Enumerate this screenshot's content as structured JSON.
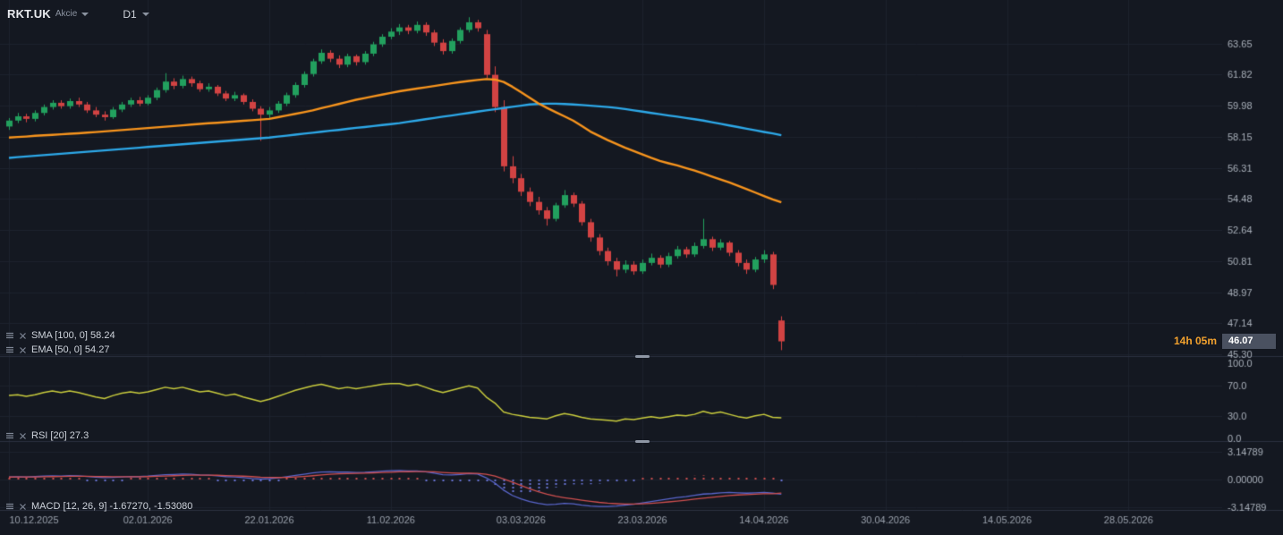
{
  "header": {
    "symbol": "RKT.UK",
    "instrument_type": "Akcie",
    "timeframe": "D1"
  },
  "indicators": [
    {
      "label": "SMA [100, 0] 58.24"
    },
    {
      "label": "EMA [50, 0] 54.27"
    },
    {
      "label": "RSI [20] 27.3"
    },
    {
      "label": "MACD [12, 26, 9] -1.67270, -1.53080"
    }
  ],
  "price_tag": {
    "value": "46.07",
    "countdown": "14h 05m"
  },
  "axes": {
    "price_labels": [
      "63.65",
      "61.82",
      "59.98",
      "58.15",
      "56.31",
      "54.48",
      "52.64",
      "50.81",
      "48.97",
      "47.14",
      "45.30"
    ],
    "rsi_labels": [
      "100.0",
      "70.0",
      "30.0",
      "0.0"
    ],
    "macd_labels": [
      "3.14789",
      "0.00000",
      "-3.14789"
    ],
    "date_ticks": [
      {
        "i": 0,
        "label": "10.12.2025"
      },
      {
        "i": 16,
        "label": "02.01.2026"
      },
      {
        "i": 30,
        "label": "22.01.2026"
      },
      {
        "i": 44,
        "label": "11.02.2026"
      },
      {
        "i": 59,
        "label": "03.03.2026"
      },
      {
        "i": 73,
        "label": "23.03.2026"
      },
      {
        "i": 87,
        "label": "14.04.2026"
      },
      {
        "i": 101,
        "label": "30.04.2026"
      },
      {
        "i": 115,
        "label": "14.05.2026"
      },
      {
        "i": 129,
        "label": "28.05.2026"
      }
    ]
  },
  "colors": {
    "bg": "#141821",
    "grid": "#1d222e",
    "divider": "#2b3140",
    "up": "#22a05e",
    "down": "#d24343",
    "sma": "#2da8e8",
    "ema": "#f7941d",
    "rsi": "#c8cb3d",
    "macd_line": "#5a66cc",
    "macd_signal": "#cf4f4f",
    "hist_pos": "#cf4f4f",
    "hist_neg": "#6b76d9",
    "axis_text": "#aab1bb",
    "date_text": "#9aa1ac"
  },
  "chart_data": {
    "type": "candlestick",
    "symbol": "RKT.UK",
    "timeframe": "D1",
    "last_price": 46.07,
    "scales": {
      "price_min": 45.2,
      "price_max": 65.9,
      "rsi_min": 0,
      "rsi_max": 100,
      "macd_min": -3.25,
      "macd_max": 3.25
    },
    "candles": [
      [
        58.75,
        59.25,
        58.55,
        59.1
      ],
      [
        59.1,
        59.55,
        58.95,
        59.35
      ],
      [
        59.35,
        59.5,
        59.0,
        59.2
      ],
      [
        59.2,
        59.7,
        59.05,
        59.55
      ],
      [
        59.55,
        60.05,
        59.4,
        59.9
      ],
      [
        59.9,
        60.3,
        59.75,
        60.15
      ],
      [
        60.15,
        60.3,
        59.8,
        59.95
      ],
      [
        59.95,
        60.4,
        59.8,
        60.25
      ],
      [
        60.25,
        60.45,
        59.9,
        60.05
      ],
      [
        60.05,
        60.2,
        59.55,
        59.7
      ],
      [
        59.7,
        59.9,
        59.3,
        59.45
      ],
      [
        59.45,
        59.65,
        59.1,
        59.3
      ],
      [
        59.3,
        59.9,
        59.2,
        59.75
      ],
      [
        59.75,
        60.2,
        59.6,
        60.05
      ],
      [
        60.05,
        60.45,
        59.9,
        60.3
      ],
      [
        60.3,
        60.5,
        59.95,
        60.1
      ],
      [
        60.1,
        60.6,
        60.0,
        60.45
      ],
      [
        60.45,
        61.05,
        60.3,
        60.9
      ],
      [
        60.9,
        61.9,
        60.75,
        61.4
      ],
      [
        61.4,
        61.6,
        60.95,
        61.15
      ],
      [
        61.15,
        61.75,
        61.0,
        61.55
      ],
      [
        61.55,
        61.7,
        61.1,
        61.3
      ],
      [
        61.3,
        61.45,
        60.8,
        60.95
      ],
      [
        60.95,
        61.3,
        60.8,
        61.1
      ],
      [
        61.1,
        61.2,
        60.55,
        60.7
      ],
      [
        60.7,
        60.85,
        60.25,
        60.4
      ],
      [
        60.4,
        60.8,
        60.25,
        60.6
      ],
      [
        60.6,
        60.7,
        60.05,
        60.2
      ],
      [
        60.2,
        60.35,
        59.65,
        59.8
      ],
      [
        59.8,
        59.95,
        57.9,
        59.45
      ],
      [
        59.45,
        59.9,
        59.25,
        59.7
      ],
      [
        59.7,
        60.25,
        59.55,
        60.1
      ],
      [
        60.1,
        60.75,
        59.95,
        60.6
      ],
      [
        60.6,
        61.35,
        60.45,
        61.2
      ],
      [
        61.2,
        62.0,
        61.05,
        61.85
      ],
      [
        61.85,
        62.75,
        61.7,
        62.6
      ],
      [
        62.6,
        63.3,
        62.45,
        63.1
      ],
      [
        63.1,
        63.25,
        62.55,
        62.75
      ],
      [
        62.75,
        62.95,
        62.2,
        62.4
      ],
      [
        62.4,
        63.05,
        62.25,
        62.9
      ],
      [
        62.9,
        63.0,
        62.35,
        62.55
      ],
      [
        62.55,
        63.2,
        62.4,
        63.05
      ],
      [
        63.05,
        63.75,
        62.9,
        63.6
      ],
      [
        63.6,
        64.2,
        63.45,
        64.05
      ],
      [
        64.05,
        64.55,
        63.9,
        64.35
      ],
      [
        64.35,
        64.8,
        64.15,
        64.6
      ],
      [
        64.6,
        64.75,
        64.2,
        64.4
      ],
      [
        64.4,
        64.95,
        64.25,
        64.75
      ],
      [
        64.75,
        64.9,
        64.1,
        64.3
      ],
      [
        64.3,
        64.45,
        63.5,
        63.7
      ],
      [
        63.7,
        63.9,
        63.0,
        63.2
      ],
      [
        63.2,
        63.95,
        63.05,
        63.8
      ],
      [
        63.8,
        64.6,
        63.65,
        64.45
      ],
      [
        64.45,
        65.2,
        64.3,
        64.9
      ],
      [
        64.9,
        65.05,
        64.35,
        64.55
      ],
      [
        64.2,
        64.45,
        61.6,
        61.8
      ],
      [
        61.8,
        62.3,
        59.6,
        59.9
      ],
      [
        59.9,
        60.3,
        56.1,
        56.4
      ],
      [
        56.4,
        57.0,
        55.4,
        55.7
      ],
      [
        55.7,
        55.95,
        54.65,
        54.9
      ],
      [
        54.9,
        55.15,
        54.05,
        54.3
      ],
      [
        54.3,
        54.6,
        53.55,
        53.8
      ],
      [
        53.8,
        54.0,
        52.9,
        53.3
      ],
      [
        53.3,
        54.25,
        53.15,
        54.1
      ],
      [
        54.1,
        55.0,
        53.95,
        54.7
      ],
      [
        54.7,
        54.85,
        54.0,
        54.2
      ],
      [
        54.2,
        54.35,
        52.9,
        53.1
      ],
      [
        53.1,
        53.3,
        51.95,
        52.2
      ],
      [
        52.2,
        52.4,
        51.15,
        51.4
      ],
      [
        51.4,
        51.6,
        50.55,
        50.8
      ],
      [
        50.8,
        51.0,
        49.9,
        50.3
      ],
      [
        50.3,
        50.85,
        50.1,
        50.6
      ],
      [
        50.6,
        50.8,
        50.0,
        50.2
      ],
      [
        50.2,
        50.9,
        50.05,
        50.7
      ],
      [
        50.7,
        51.25,
        50.55,
        51.0
      ],
      [
        51.0,
        51.15,
        50.4,
        50.6
      ],
      [
        50.6,
        51.3,
        50.45,
        51.1
      ],
      [
        51.1,
        51.7,
        50.95,
        51.5
      ],
      [
        51.5,
        51.65,
        51.0,
        51.2
      ],
      [
        51.2,
        51.9,
        51.05,
        51.7
      ],
      [
        51.7,
        53.3,
        51.55,
        52.1
      ],
      [
        52.1,
        52.25,
        51.4,
        51.6
      ],
      [
        51.6,
        52.1,
        51.45,
        51.9
      ],
      [
        51.9,
        52.0,
        51.1,
        51.3
      ],
      [
        51.3,
        51.45,
        50.5,
        50.7
      ],
      [
        50.7,
        50.9,
        50.05,
        50.3
      ],
      [
        50.3,
        51.05,
        50.15,
        50.9
      ],
      [
        50.9,
        51.45,
        50.7,
        51.2
      ],
      [
        51.2,
        51.35,
        49.15,
        49.4
      ],
      [
        47.3,
        47.55,
        45.55,
        46.07
      ]
    ],
    "sma100": [
      56.9,
      56.94,
      56.98,
      57.02,
      57.06,
      57.1,
      57.14,
      57.18,
      57.22,
      57.26,
      57.3,
      57.34,
      57.38,
      57.42,
      57.46,
      57.5,
      57.54,
      57.58,
      57.62,
      57.66,
      57.7,
      57.74,
      57.78,
      57.82,
      57.86,
      57.9,
      57.94,
      57.98,
      58.02,
      58.06,
      58.1,
      58.16,
      58.21,
      58.27,
      58.33,
      58.38,
      58.44,
      58.5,
      58.55,
      58.61,
      58.67,
      58.72,
      58.78,
      58.84,
      58.89,
      58.95,
      59.03,
      59.1,
      59.18,
      59.25,
      59.33,
      59.4,
      59.48,
      59.55,
      59.63,
      59.7,
      59.77,
      59.84,
      59.91,
      59.98,
      60.05,
      60.08,
      60.1,
      60.1,
      60.08,
      60.05,
      60.02,
      59.98,
      59.94,
      59.9,
      59.85,
      59.78,
      59.7,
      59.63,
      59.55,
      59.48,
      59.4,
      59.33,
      59.25,
      59.18,
      59.1,
      59.0,
      58.91,
      58.81,
      58.72,
      58.62,
      58.53,
      58.43,
      58.34,
      58.24
    ],
    "ema50": [
      58.1,
      58.13,
      58.16,
      58.2,
      58.23,
      58.26,
      58.29,
      58.32,
      58.35,
      58.39,
      58.42,
      58.46,
      58.5,
      58.54,
      58.58,
      58.62,
      58.66,
      58.7,
      58.74,
      58.78,
      58.82,
      58.86,
      58.9,
      58.94,
      58.97,
      59.01,
      59.05,
      59.09,
      59.12,
      59.16,
      59.2,
      59.3,
      59.4,
      59.5,
      59.6,
      59.7,
      59.83,
      59.95,
      60.08,
      60.2,
      60.33,
      60.43,
      60.53,
      60.63,
      60.73,
      60.83,
      60.91,
      60.99,
      61.06,
      61.14,
      61.22,
      61.3,
      61.37,
      61.44,
      61.5,
      61.55,
      61.52,
      61.38,
      61.1,
      60.78,
      60.45,
      60.12,
      59.85,
      59.6,
      59.35,
      59.1,
      58.78,
      58.45,
      58.2,
      57.95,
      57.72,
      57.5,
      57.3,
      57.1,
      56.9,
      56.72,
      56.58,
      56.45,
      56.3,
      56.15,
      55.98,
      55.8,
      55.62,
      55.45,
      55.25,
      55.05,
      54.85,
      54.65,
      54.45,
      54.27
    ],
    "rsi20": [
      57,
      58,
      56,
      58,
      61,
      63,
      61,
      63,
      61,
      58,
      55,
      53,
      57,
      60,
      62,
      60,
      62,
      65,
      68,
      66,
      68,
      65,
      62,
      63,
      60,
      57,
      59,
      55,
      52,
      49,
      52,
      56,
      60,
      64,
      67,
      70,
      72,
      69,
      66,
      68,
      66,
      68,
      70,
      72,
      73,
      73,
      70,
      72,
      68,
      64,
      61,
      64,
      67,
      70,
      67,
      55,
      47,
      35,
      32,
      30,
      28,
      27,
      26,
      30,
      33,
      31,
      28,
      26,
      25,
      24,
      23,
      26,
      25,
      27,
      29,
      27,
      29,
      31,
      30,
      32,
      36,
      33,
      35,
      32,
      29,
      27,
      30,
      32,
      28,
      27.3
    ],
    "macd": {
      "macd": [
        0.3,
        0.32,
        0.3,
        0.33,
        0.38,
        0.42,
        0.4,
        0.43,
        0.41,
        0.35,
        0.28,
        0.22,
        0.25,
        0.3,
        0.35,
        0.33,
        0.38,
        0.46,
        0.55,
        0.58,
        0.62,
        0.6,
        0.52,
        0.5,
        0.42,
        0.33,
        0.3,
        0.22,
        0.12,
        0.05,
        0.1,
        0.2,
        0.32,
        0.46,
        0.6,
        0.74,
        0.86,
        0.88,
        0.84,
        0.84,
        0.8,
        0.82,
        0.88,
        0.95,
        1.0,
        1.02,
        0.98,
        0.98,
        0.88,
        0.72,
        0.55,
        0.52,
        0.58,
        0.68,
        0.62,
        0.2,
        -0.4,
        -1.2,
        -1.8,
        -2.2,
        -2.5,
        -2.7,
        -2.85,
        -2.8,
        -2.7,
        -2.75,
        -2.9,
        -3.0,
        -3.05,
        -3.05,
        -3.0,
        -2.9,
        -2.8,
        -2.65,
        -2.5,
        -2.35,
        -2.2,
        -2.05,
        -1.95,
        -1.8,
        -1.65,
        -1.6,
        -1.5,
        -1.45,
        -1.5,
        -1.55,
        -1.5,
        -1.45,
        -1.55,
        -1.6727
      ],
      "signal": [
        0.28,
        0.29,
        0.29,
        0.3,
        0.31,
        0.33,
        0.35,
        0.36,
        0.37,
        0.37,
        0.35,
        0.33,
        0.31,
        0.31,
        0.32,
        0.32,
        0.33,
        0.36,
        0.4,
        0.43,
        0.47,
        0.5,
        0.5,
        0.5,
        0.48,
        0.45,
        0.42,
        0.38,
        0.33,
        0.27,
        0.24,
        0.23,
        0.25,
        0.29,
        0.35,
        0.43,
        0.52,
        0.59,
        0.64,
        0.68,
        0.7,
        0.73,
        0.76,
        0.79,
        0.83,
        0.87,
        0.89,
        0.91,
        0.9,
        0.87,
        0.8,
        0.75,
        0.71,
        0.71,
        0.69,
        0.59,
        0.39,
        0.07,
        -0.3,
        -0.68,
        -1.05,
        -1.38,
        -1.67,
        -1.9,
        -2.06,
        -2.2,
        -2.34,
        -2.47,
        -2.59,
        -2.68,
        -2.74,
        -2.78,
        -2.78,
        -2.75,
        -2.7,
        -2.63,
        -2.54,
        -2.44,
        -2.34,
        -2.23,
        -2.12,
        -2.01,
        -1.91,
        -1.82,
        -1.75,
        -1.71,
        -1.67,
        -1.62,
        -1.61,
        -1.5308
      ]
    }
  }
}
